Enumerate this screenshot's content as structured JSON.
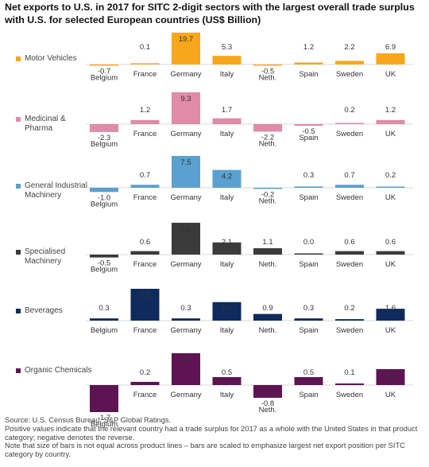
{
  "title": "Net exports to U.S. in 2017 for SITC 2-digit sectors with the largest overall trade surplus with U.S. for selected European countries (US$ Billion)",
  "chart_data": [
    {
      "type": "bar",
      "name": "Motor Vehicles",
      "legend": "Motor Vehicles",
      "color": "#f7a71b",
      "categories": [
        "Belgium",
        "France",
        "Germany",
        "Italy",
        "Neth.",
        "Spain",
        "Sweden",
        "UK"
      ],
      "values": [
        -0.7,
        0.1,
        19.7,
        5.3,
        -0.5,
        1.2,
        2.2,
        6.9
      ],
      "labels": [
        "-0.7",
        "0.1",
        "19.7",
        "5.3",
        "-0.5",
        "1.2",
        "2.2",
        "6.9"
      ]
    },
    {
      "type": "bar",
      "name": "Medicinal & Pharma",
      "legend": "Medicinal & Pharma",
      "color": "#e08ba7",
      "categories": [
        "Belgium",
        "France",
        "Germany",
        "Italy",
        "Neth.",
        "Spain",
        "Sweden",
        "UK"
      ],
      "values": [
        -2.3,
        1.2,
        9.3,
        1.7,
        -2.2,
        -0.5,
        0.2,
        1.2
      ],
      "labels": [
        "-2.3",
        "1.2",
        "9.3",
        "1.7",
        "-2.2",
        "-0.5",
        "0.2",
        "1.2"
      ]
    },
    {
      "type": "bar",
      "name": "General Industrial Machinery",
      "legend": "General Industrial Machinery",
      "color": "#5aa1cf",
      "categories": [
        "Belgium",
        "France",
        "Germany",
        "Italy",
        "Neth.",
        "Spain",
        "Sweden",
        "UK"
      ],
      "values": [
        -1.0,
        0.7,
        7.5,
        4.2,
        -0.2,
        0.3,
        0.7,
        0.2
      ],
      "labels": [
        "-1.0",
        "0.7",
        "7.5",
        "4.2",
        "-0.2",
        "0.3",
        "0.7",
        "0.2"
      ]
    },
    {
      "type": "bar",
      "name": "Specialised Machinery",
      "legend": "Specialised Machinery",
      "color": "#3b3b3b",
      "categories": [
        "Belgium",
        "France",
        "Germany",
        "Italy",
        "Neth.",
        "Spain",
        "Sweden",
        "UK"
      ],
      "values": [
        -0.5,
        0.6,
        5.5,
        2.1,
        1.1,
        0.0,
        0.6,
        0.6
      ],
      "labels": [
        "-0.5",
        "0.6",
        "5.5",
        "2.1",
        "1.1",
        "0.0",
        "0.6",
        "0.6"
      ]
    },
    {
      "type": "bar",
      "name": "Beverages",
      "legend": "Beverages",
      "color": "#0f2a5c",
      "categories": [
        "Belgium",
        "France",
        "Germany",
        "Italy",
        "Neth.",
        "Spain",
        "Sweden",
        "UK"
      ],
      "values": [
        0.3,
        4.3,
        0.3,
        2.5,
        0.9,
        0.3,
        0.2,
        1.6
      ],
      "labels": [
        "0.3",
        "4.3",
        "0.3",
        "2.5",
        "0.9",
        "0.3",
        "0.2",
        "1.6"
      ]
    },
    {
      "type": "bar",
      "name": "Organic Chemicals",
      "legend": "Organic Chemicals",
      "color": "#5e1452",
      "categories": [
        "Belgium",
        "France",
        "Germany",
        "Italy",
        "Neth.",
        "Spain",
        "Sweden",
        "UK"
      ],
      "values": [
        -1.7,
        0.2,
        2.0,
        0.5,
        -0.8,
        0.5,
        0.1,
        1.0
      ],
      "labels": [
        "-1.7",
        "0.2",
        "2.0",
        "0.5",
        "-0.8",
        "0.5",
        "0.1",
        "1.0"
      ]
    }
  ],
  "footer": [
    "Source: U.S. Census Bureau, S&P Global Ratings.",
    "Positive values indicate that the relevant country had a trade surplus for 2017 as a whole with the United States in that product category; negative denotes the reverse.",
    "Note that size of bars is not equal across product lines – bars are scaled to emphasize largest net export position per SITC category by country."
  ]
}
